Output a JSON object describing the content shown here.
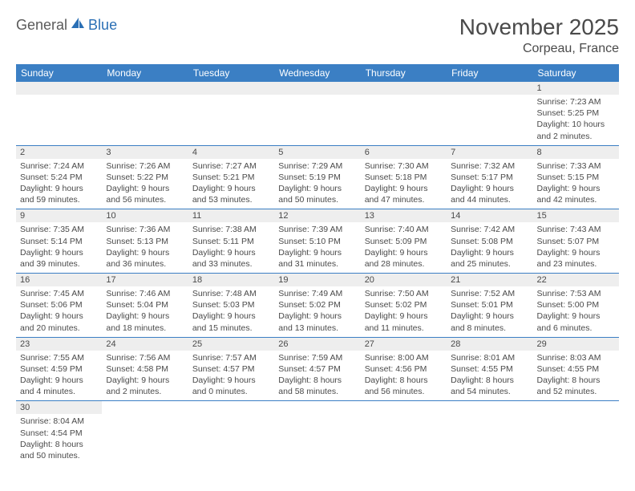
{
  "logo": {
    "part1": "General",
    "part2": "Blue"
  },
  "title": "November 2025",
  "location": "Corpeau, France",
  "colors": {
    "header_bg": "#3b7fc4",
    "header_text": "#ffffff",
    "daynum_bg": "#eeeeee",
    "text": "#4a4a4a",
    "logo_gray": "#5a5a5a",
    "logo_blue": "#2a6fb5",
    "cell_border": "#3b7fc4"
  },
  "weekdays": [
    "Sunday",
    "Monday",
    "Tuesday",
    "Wednesday",
    "Thursday",
    "Friday",
    "Saturday"
  ],
  "grid": [
    [
      null,
      null,
      null,
      null,
      null,
      null,
      {
        "n": "1",
        "sr": "Sunrise: 7:23 AM",
        "ss": "Sunset: 5:25 PM",
        "d1": "Daylight: 10 hours",
        "d2": "and 2 minutes."
      }
    ],
    [
      {
        "n": "2",
        "sr": "Sunrise: 7:24 AM",
        "ss": "Sunset: 5:24 PM",
        "d1": "Daylight: 9 hours",
        "d2": "and 59 minutes."
      },
      {
        "n": "3",
        "sr": "Sunrise: 7:26 AM",
        "ss": "Sunset: 5:22 PM",
        "d1": "Daylight: 9 hours",
        "d2": "and 56 minutes."
      },
      {
        "n": "4",
        "sr": "Sunrise: 7:27 AM",
        "ss": "Sunset: 5:21 PM",
        "d1": "Daylight: 9 hours",
        "d2": "and 53 minutes."
      },
      {
        "n": "5",
        "sr": "Sunrise: 7:29 AM",
        "ss": "Sunset: 5:19 PM",
        "d1": "Daylight: 9 hours",
        "d2": "and 50 minutes."
      },
      {
        "n": "6",
        "sr": "Sunrise: 7:30 AM",
        "ss": "Sunset: 5:18 PM",
        "d1": "Daylight: 9 hours",
        "d2": "and 47 minutes."
      },
      {
        "n": "7",
        "sr": "Sunrise: 7:32 AM",
        "ss": "Sunset: 5:17 PM",
        "d1": "Daylight: 9 hours",
        "d2": "and 44 minutes."
      },
      {
        "n": "8",
        "sr": "Sunrise: 7:33 AM",
        "ss": "Sunset: 5:15 PM",
        "d1": "Daylight: 9 hours",
        "d2": "and 42 minutes."
      }
    ],
    [
      {
        "n": "9",
        "sr": "Sunrise: 7:35 AM",
        "ss": "Sunset: 5:14 PM",
        "d1": "Daylight: 9 hours",
        "d2": "and 39 minutes."
      },
      {
        "n": "10",
        "sr": "Sunrise: 7:36 AM",
        "ss": "Sunset: 5:13 PM",
        "d1": "Daylight: 9 hours",
        "d2": "and 36 minutes."
      },
      {
        "n": "11",
        "sr": "Sunrise: 7:38 AM",
        "ss": "Sunset: 5:11 PM",
        "d1": "Daylight: 9 hours",
        "d2": "and 33 minutes."
      },
      {
        "n": "12",
        "sr": "Sunrise: 7:39 AM",
        "ss": "Sunset: 5:10 PM",
        "d1": "Daylight: 9 hours",
        "d2": "and 31 minutes."
      },
      {
        "n": "13",
        "sr": "Sunrise: 7:40 AM",
        "ss": "Sunset: 5:09 PM",
        "d1": "Daylight: 9 hours",
        "d2": "and 28 minutes."
      },
      {
        "n": "14",
        "sr": "Sunrise: 7:42 AM",
        "ss": "Sunset: 5:08 PM",
        "d1": "Daylight: 9 hours",
        "d2": "and 25 minutes."
      },
      {
        "n": "15",
        "sr": "Sunrise: 7:43 AM",
        "ss": "Sunset: 5:07 PM",
        "d1": "Daylight: 9 hours",
        "d2": "and 23 minutes."
      }
    ],
    [
      {
        "n": "16",
        "sr": "Sunrise: 7:45 AM",
        "ss": "Sunset: 5:06 PM",
        "d1": "Daylight: 9 hours",
        "d2": "and 20 minutes."
      },
      {
        "n": "17",
        "sr": "Sunrise: 7:46 AM",
        "ss": "Sunset: 5:04 PM",
        "d1": "Daylight: 9 hours",
        "d2": "and 18 minutes."
      },
      {
        "n": "18",
        "sr": "Sunrise: 7:48 AM",
        "ss": "Sunset: 5:03 PM",
        "d1": "Daylight: 9 hours",
        "d2": "and 15 minutes."
      },
      {
        "n": "19",
        "sr": "Sunrise: 7:49 AM",
        "ss": "Sunset: 5:02 PM",
        "d1": "Daylight: 9 hours",
        "d2": "and 13 minutes."
      },
      {
        "n": "20",
        "sr": "Sunrise: 7:50 AM",
        "ss": "Sunset: 5:02 PM",
        "d1": "Daylight: 9 hours",
        "d2": "and 11 minutes."
      },
      {
        "n": "21",
        "sr": "Sunrise: 7:52 AM",
        "ss": "Sunset: 5:01 PM",
        "d1": "Daylight: 9 hours",
        "d2": "and 8 minutes."
      },
      {
        "n": "22",
        "sr": "Sunrise: 7:53 AM",
        "ss": "Sunset: 5:00 PM",
        "d1": "Daylight: 9 hours",
        "d2": "and 6 minutes."
      }
    ],
    [
      {
        "n": "23",
        "sr": "Sunrise: 7:55 AM",
        "ss": "Sunset: 4:59 PM",
        "d1": "Daylight: 9 hours",
        "d2": "and 4 minutes."
      },
      {
        "n": "24",
        "sr": "Sunrise: 7:56 AM",
        "ss": "Sunset: 4:58 PM",
        "d1": "Daylight: 9 hours",
        "d2": "and 2 minutes."
      },
      {
        "n": "25",
        "sr": "Sunrise: 7:57 AM",
        "ss": "Sunset: 4:57 PM",
        "d1": "Daylight: 9 hours",
        "d2": "and 0 minutes."
      },
      {
        "n": "26",
        "sr": "Sunrise: 7:59 AM",
        "ss": "Sunset: 4:57 PM",
        "d1": "Daylight: 8 hours",
        "d2": "and 58 minutes."
      },
      {
        "n": "27",
        "sr": "Sunrise: 8:00 AM",
        "ss": "Sunset: 4:56 PM",
        "d1": "Daylight: 8 hours",
        "d2": "and 56 minutes."
      },
      {
        "n": "28",
        "sr": "Sunrise: 8:01 AM",
        "ss": "Sunset: 4:55 PM",
        "d1": "Daylight: 8 hours",
        "d2": "and 54 minutes."
      },
      {
        "n": "29",
        "sr": "Sunrise: 8:03 AM",
        "ss": "Sunset: 4:55 PM",
        "d1": "Daylight: 8 hours",
        "d2": "and 52 minutes."
      }
    ],
    [
      {
        "n": "30",
        "sr": "Sunrise: 8:04 AM",
        "ss": "Sunset: 4:54 PM",
        "d1": "Daylight: 8 hours",
        "d2": "and 50 minutes."
      },
      null,
      null,
      null,
      null,
      null,
      null
    ]
  ]
}
